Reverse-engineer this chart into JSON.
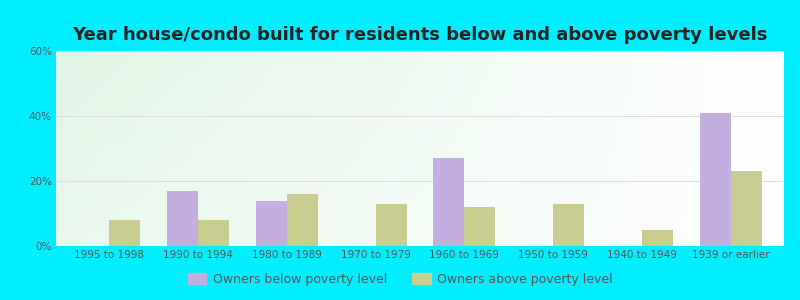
{
  "title": "Year house/condo built for residents below and above poverty levels",
  "categories": [
    "1995 to 1998",
    "1990 to 1994",
    "1980 to 1989",
    "1970 to 1979",
    "1960 to 1969",
    "1950 to 1959",
    "1940 to 1949",
    "1939 or earlier"
  ],
  "below_poverty": [
    0,
    17,
    14,
    0,
    27,
    0,
    0,
    41
  ],
  "above_poverty": [
    8,
    8,
    16,
    13,
    12,
    13,
    5,
    23
  ],
  "below_color": "#c4aee0",
  "above_color": "#c8cc8e",
  "ylim": [
    0,
    60
  ],
  "yticks": [
    0,
    20,
    40,
    60
  ],
  "ytick_labels": [
    "0%",
    "20%",
    "40%",
    "60%"
  ],
  "grid_color": "#dddddd",
  "outer_bg": "#00eeff",
  "legend_below_label": "Owners below poverty level",
  "legend_above_label": "Owners above poverty level",
  "bar_width": 0.35,
  "title_fontsize": 13,
  "tick_fontsize": 7.5,
  "legend_fontsize": 9
}
